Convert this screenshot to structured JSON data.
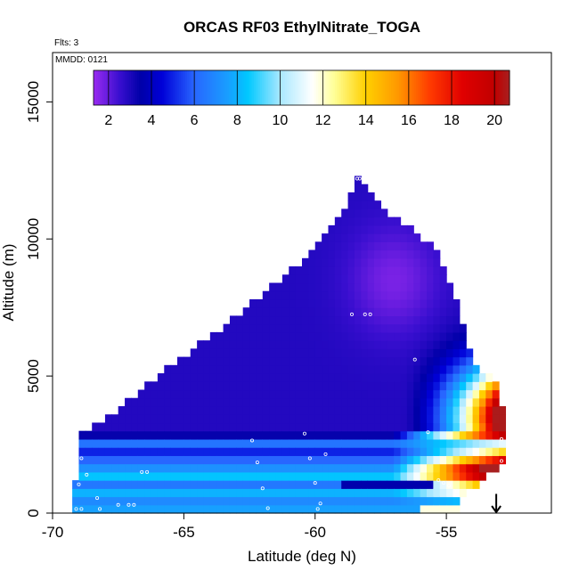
{
  "chart_data": {
    "type": "heatmap",
    "title": "ORCAS RF03 EthylNitrate_TOGA",
    "subtitle_flts": "Flts: 3",
    "subtitle_mmdd": "MMDD: 0121",
    "xlabel": "Latitude (deg N)",
    "ylabel": "Altitude (m)",
    "xlim": [
      -70,
      -51
    ],
    "ylim": [
      0,
      16800
    ],
    "x_ticks": [
      -70,
      -65,
      -60,
      -55
    ],
    "x_tick_labels": [
      "-70",
      "-65",
      "-60",
      "-55"
    ],
    "y_ticks": [
      0,
      5000,
      10000,
      15000
    ],
    "y_tick_labels": [
      "0",
      "5000",
      "10000",
      "15000"
    ],
    "colorbar": {
      "range": [
        1.3,
        20.7
      ],
      "ticks": [
        2,
        4,
        6,
        8,
        10,
        12,
        14,
        16,
        18,
        20
      ],
      "tick_labels": [
        "2",
        "4",
        "6",
        "8",
        "10",
        "12",
        "14",
        "16",
        "18",
        "20"
      ],
      "stops": [
        {
          "v": 1.3,
          "c": "#9a2cf0"
        },
        {
          "v": 2.5,
          "c": "#3a0fd0"
        },
        {
          "v": 3.5,
          "c": "#0000a8"
        },
        {
          "v": 4.5,
          "c": "#0000d8"
        },
        {
          "v": 6.0,
          "c": "#2866ff"
        },
        {
          "v": 7.5,
          "c": "#1a9cff"
        },
        {
          "v": 8.5,
          "c": "#00c8ff"
        },
        {
          "v": 10.0,
          "c": "#a8e8ff"
        },
        {
          "v": 11.5,
          "c": "#ffffff"
        },
        {
          "v": 12.5,
          "c": "#ffff9a"
        },
        {
          "v": 14.0,
          "c": "#ffd000"
        },
        {
          "v": 15.5,
          "c": "#ff9800"
        },
        {
          "v": 17.0,
          "c": "#ff3a00"
        },
        {
          "v": 18.5,
          "c": "#e00000"
        },
        {
          "v": 20.0,
          "c": "#c00000"
        },
        {
          "v": 20.7,
          "c": "#a82020"
        }
      ]
    },
    "field": {
      "domain_top_points": [
        {
          "lat": -69.2,
          "alt": 300
        },
        {
          "lat": -69.0,
          "alt": 2900
        },
        {
          "lat": -68.2,
          "alt": 3300
        },
        {
          "lat": -66.0,
          "alt": 5000
        },
        {
          "lat": -63.0,
          "alt": 7200
        },
        {
          "lat": -60.0,
          "alt": 9600
        },
        {
          "lat": -58.6,
          "alt": 11600
        },
        {
          "lat": -58.4,
          "alt": 12200
        },
        {
          "lat": -57.0,
          "alt": 10800
        },
        {
          "lat": -55.3,
          "alt": 9600
        },
        {
          "lat": -54.5,
          "alt": 7500
        },
        {
          "lat": -54.0,
          "alt": 5500
        },
        {
          "lat": -53.1,
          "alt": 4800
        },
        {
          "lat": -52.8,
          "alt": 3500
        },
        {
          "lat": -52.8,
          "alt": 1800
        },
        {
          "lat": -53.5,
          "alt": 1300
        },
        {
          "lat": -54.2,
          "alt": 700
        },
        {
          "lat": -54.7,
          "alt": 0
        }
      ],
      "cell_lat": 0.25,
      "cell_alt": 300
    },
    "flight_points": [
      {
        "lat": -69.1,
        "alt": 150
      },
      {
        "lat": -68.9,
        "alt": 150
      },
      {
        "lat": -68.2,
        "alt": 150
      },
      {
        "lat": -67.5,
        "alt": 300
      },
      {
        "lat": -67.1,
        "alt": 300
      },
      {
        "lat": -66.9,
        "alt": 300
      },
      {
        "lat": -66.6,
        "alt": 1500
      },
      {
        "lat": -66.4,
        "alt": 1500
      },
      {
        "lat": -68.3,
        "alt": 550
      },
      {
        "lat": -68.7,
        "alt": 1400
      },
      {
        "lat": -69.0,
        "alt": 1050
      },
      {
        "lat": -68.9,
        "alt": 2000
      },
      {
        "lat": -62.4,
        "alt": 2650
      },
      {
        "lat": -62.2,
        "alt": 1850
      },
      {
        "lat": -62.0,
        "alt": 900
      },
      {
        "lat": -61.8,
        "alt": 180
      },
      {
        "lat": -60.4,
        "alt": 2900
      },
      {
        "lat": -60.2,
        "alt": 2000
      },
      {
        "lat": -60.0,
        "alt": 1100
      },
      {
        "lat": -59.8,
        "alt": 350
      },
      {
        "lat": -59.9,
        "alt": 150
      },
      {
        "lat": -59.6,
        "alt": 2150
      },
      {
        "lat": -58.6,
        "alt": 7250
      },
      {
        "lat": -58.1,
        "alt": 7250
      },
      {
        "lat": -57.9,
        "alt": 7250
      },
      {
        "lat": -58.4,
        "alt": 12200
      },
      {
        "lat": -58.3,
        "alt": 12200
      },
      {
        "lat": -56.2,
        "alt": 5600
      },
      {
        "lat": -55.7,
        "alt": 2950
      },
      {
        "lat": -55.3,
        "alt": 1200
      },
      {
        "lat": -55.1,
        "alt": 1100
      },
      {
        "lat": -54.9,
        "alt": 1000
      },
      {
        "lat": -54.6,
        "alt": 800
      },
      {
        "lat": -54.5,
        "alt": 9600
      },
      {
        "lat": -54.1,
        "alt": 8500
      },
      {
        "lat": -53.9,
        "alt": 7400
      },
      {
        "lat": -52.9,
        "alt": 2700
      },
      {
        "lat": -52.9,
        "alt": 1900
      }
    ],
    "arrow": {
      "lat": -53.1,
      "alt_top": 700,
      "alt_bottom": 0,
      "direction": "down"
    }
  }
}
